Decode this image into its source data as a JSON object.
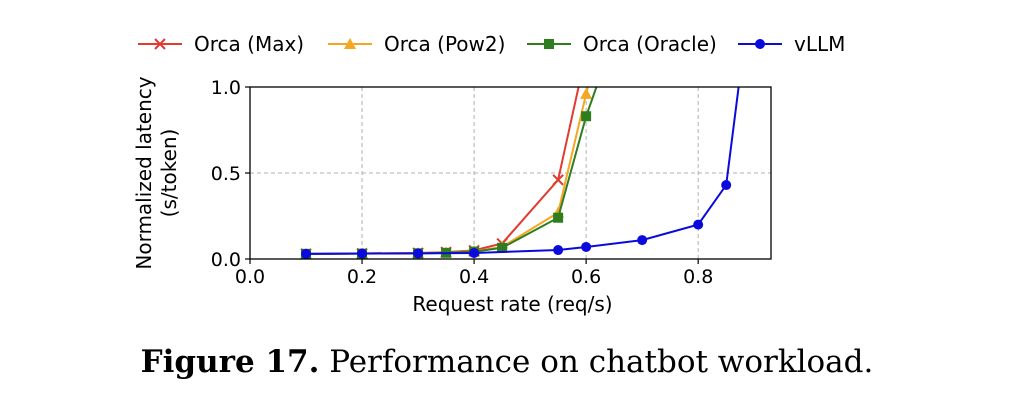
{
  "chart_data": {
    "type": "line",
    "xlabel": "Request rate (req/s)",
    "ylabel": [
      "Normalized latency",
      "(s/token)"
    ],
    "xlim": [
      0.0,
      0.93
    ],
    "ylim": [
      0.0,
      1.0
    ],
    "xticks": [
      "0.0",
      "0.2",
      "0.4",
      "0.6",
      "0.8"
    ],
    "yticks": [
      "0.0",
      "0.5",
      "1.0"
    ],
    "grid": true,
    "legend_placement": "top",
    "series": [
      {
        "name": "Orca (Max)",
        "color": "#e03c31",
        "marker": "x",
        "x": [
          0.1,
          0.2,
          0.3,
          0.35,
          0.4,
          0.45,
          0.55,
          0.6
        ],
        "y": [
          0.03,
          0.032,
          0.035,
          0.04,
          0.05,
          0.09,
          0.46,
          1.2
        ]
      },
      {
        "name": "Orca (Pow2)",
        "color": "#f5a623",
        "marker": "triangle",
        "x": [
          0.1,
          0.2,
          0.3,
          0.35,
          0.4,
          0.45,
          0.55,
          0.6,
          0.62
        ],
        "y": [
          0.03,
          0.032,
          0.034,
          0.038,
          0.045,
          0.07,
          0.27,
          0.96,
          1.2
        ]
      },
      {
        "name": "Orca (Oracle)",
        "color": "#2e7d1e",
        "marker": "square",
        "x": [
          0.1,
          0.2,
          0.3,
          0.35,
          0.4,
          0.45,
          0.55,
          0.6,
          0.64
        ],
        "y": [
          0.03,
          0.031,
          0.033,
          0.036,
          0.043,
          0.065,
          0.24,
          0.83,
          1.2
        ]
      },
      {
        "name": "vLLM",
        "color": "#0a0adc",
        "marker": "circle",
        "x": [
          0.1,
          0.2,
          0.3,
          0.4,
          0.55,
          0.6,
          0.7,
          0.8,
          0.85,
          0.88
        ],
        "y": [
          0.03,
          0.032,
          0.033,
          0.035,
          0.052,
          0.07,
          0.11,
          0.2,
          0.43,
          1.2
        ]
      }
    ]
  },
  "caption": {
    "label": "Figure 17.",
    "text": " Performance on chatbot workload."
  }
}
